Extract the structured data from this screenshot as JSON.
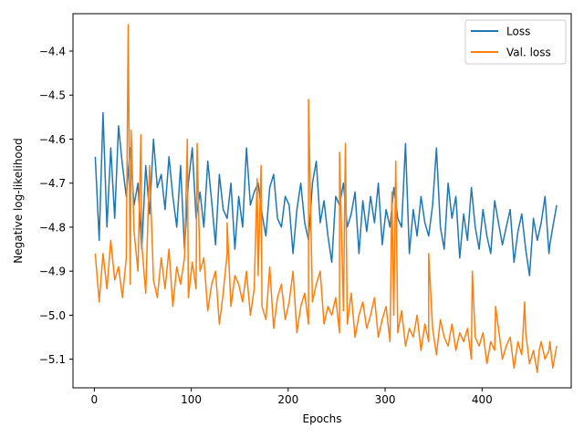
{
  "chart_data": {
    "type": "line",
    "title": "",
    "xlabel": "Epochs",
    "ylabel": "Negative log-likelihood",
    "xlim": [
      -22,
      492
    ],
    "ylim": [
      -5.165,
      -4.315
    ],
    "xticks": [
      0,
      100,
      200,
      300,
      400
    ],
    "xtick_labels": [
      "0",
      "100",
      "200",
      "300",
      "400"
    ],
    "yticks": [
      -5.1,
      -5.0,
      -4.9,
      -4.8,
      -4.7,
      -4.6,
      -4.5,
      -4.4
    ],
    "ytick_labels": [
      "−5.1",
      "−5.0",
      "−4.9",
      "−4.8",
      "−4.7",
      "−4.6",
      "−4.5",
      "−4.4"
    ],
    "grid": false,
    "legend_position": "top-right",
    "series": [
      {
        "name": "Loss",
        "color": "#1f77b4",
        "x_start": 1,
        "x_step": 4,
        "values": [
          -4.64,
          -4.83,
          -4.54,
          -4.8,
          -4.62,
          -4.78,
          -4.57,
          -4.66,
          -4.73,
          -4.62,
          -4.75,
          -4.7,
          -4.85,
          -4.66,
          -4.77,
          -4.6,
          -4.71,
          -4.68,
          -4.76,
          -4.64,
          -4.73,
          -4.8,
          -4.66,
          -4.85,
          -4.7,
          -4.62,
          -4.78,
          -4.72,
          -4.8,
          -4.65,
          -4.74,
          -4.84,
          -4.68,
          -4.76,
          -4.78,
          -4.7,
          -4.85,
          -4.73,
          -4.8,
          -4.62,
          -4.75,
          -4.72,
          -4.7,
          -4.77,
          -4.82,
          -4.71,
          -4.68,
          -4.78,
          -4.8,
          -4.73,
          -4.75,
          -4.86,
          -4.76,
          -4.7,
          -4.79,
          -4.83,
          -4.7,
          -4.65,
          -4.79,
          -4.74,
          -4.82,
          -4.88,
          -4.73,
          -4.75,
          -4.7,
          -4.8,
          -4.77,
          -4.72,
          -4.86,
          -4.74,
          -4.81,
          -4.73,
          -4.79,
          -4.7,
          -4.84,
          -4.76,
          -4.8,
          -4.71,
          -4.78,
          -4.8,
          -4.61,
          -4.86,
          -4.76,
          -4.82,
          -4.73,
          -4.79,
          -4.82,
          -4.75,
          -4.62,
          -4.8,
          -4.85,
          -4.7,
          -4.78,
          -4.73,
          -4.87,
          -4.77,
          -4.83,
          -4.71,
          -4.8,
          -4.85,
          -4.76,
          -4.82,
          -4.86,
          -4.74,
          -4.79,
          -4.84,
          -4.8,
          -4.76,
          -4.88,
          -4.81,
          -4.77,
          -4.85,
          -4.91,
          -4.78,
          -4.83,
          -4.79,
          -4.73,
          -4.86,
          -4.8,
          -4.75
        ],
        "tail": [
          [
            470,
            -4.84
          ]
        ]
      },
      {
        "name": "Val. loss",
        "color": "#ff7f0e",
        "x_start": 1,
        "x_step": 4,
        "values": [
          -4.86,
          -4.97,
          -4.86,
          -4.94,
          -4.83,
          -4.92,
          -4.89,
          -4.96,
          -4.87,
          -4.93,
          -4.81,
          -4.9,
          -4.84,
          -4.95,
          -4.66,
          -4.92,
          -4.96,
          -4.87,
          -4.94,
          -4.85,
          -4.98,
          -4.89,
          -4.93,
          -4.87,
          -4.96,
          -4.88,
          -4.94,
          -4.9,
          -4.87,
          -4.99,
          -4.93,
          -4.9,
          -5.02,
          -4.95,
          -4.86,
          -4.98,
          -4.91,
          -4.93,
          -4.97,
          -4.9,
          -5.0,
          -4.94,
          -4.91,
          -4.98,
          -5.01,
          -4.89,
          -5.03,
          -4.96,
          -4.93,
          -5.01,
          -4.97,
          -4.9,
          -5.04,
          -4.98,
          -4.95,
          -5.02,
          -4.97,
          -4.93,
          -4.9,
          -5.02,
          -4.98,
          -5.0,
          -4.96,
          -5.04,
          -4.99,
          -5.02,
          -4.95,
          -5.05,
          -5.0,
          -4.97,
          -5.03,
          -5.0,
          -4.96,
          -5.05,
          -5.01,
          -4.98,
          -5.06,
          -5.0,
          -5.04,
          -4.99,
          -5.07,
          -5.03,
          -5.05,
          -5.0,
          -5.08,
          -5.02,
          -5.06,
          -5.03,
          -5.09,
          -5.01,
          -5.05,
          -5.07,
          -5.02,
          -5.08,
          -5.04,
          -5.06,
          -5.03,
          -5.1,
          -5.05,
          -5.07,
          -5.04,
          -5.11,
          -5.06,
          -5.08,
          -5.03,
          -5.1,
          -5.07,
          -5.05,
          -5.12,
          -5.06,
          -5.09,
          -5.04,
          -5.11,
          -5.08,
          -5.13,
          -5.06,
          -5.1,
          -5.08,
          -5.12,
          -5.07
        ],
        "tail": [
          [
            470,
            -5.06
          ]
        ],
        "spikes": [
          [
            35,
            -4.34
          ],
          [
            38,
            -4.58
          ],
          [
            48,
            -4.59
          ],
          [
            96,
            -4.6
          ],
          [
            106,
            -4.61
          ],
          [
            137,
            -4.79
          ],
          [
            168,
            -4.69
          ],
          [
            172,
            -4.66
          ],
          [
            221,
            -4.51
          ],
          [
            253,
            -4.63
          ],
          [
            259,
            -4.61
          ],
          [
            307,
            -4.72
          ],
          [
            311,
            -4.65
          ],
          [
            345,
            -4.86
          ],
          [
            390,
            -4.9
          ],
          [
            414,
            -4.98
          ],
          [
            444,
            -4.97
          ],
          [
            459,
            -5.08
          ]
        ]
      }
    ]
  }
}
